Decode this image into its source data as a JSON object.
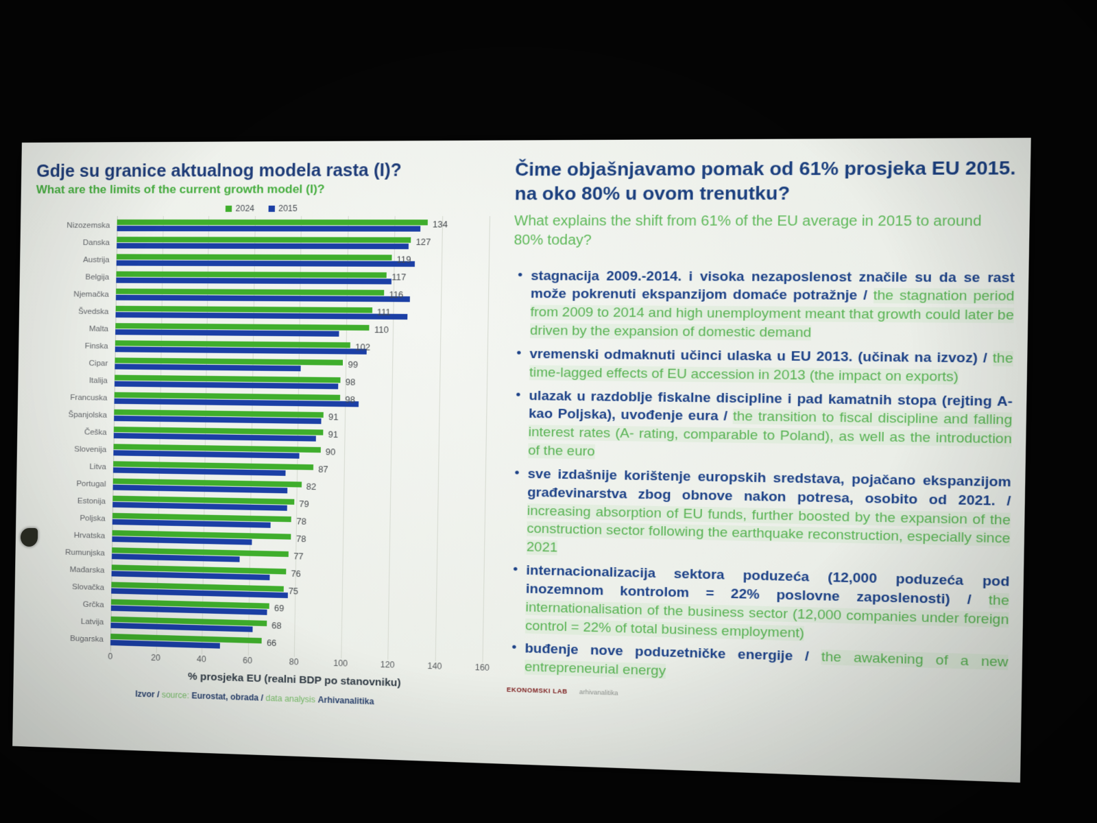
{
  "colors": {
    "bar_green_2024": "#3fae2c",
    "bar_blue_2015": "#1b3fa5",
    "navy_text": "#1c4187",
    "green_text": "#58b253",
    "slide_background": "#ecefe9",
    "photo_background": "#050505",
    "brand_red": "#7e1f1f"
  },
  "slide": {
    "left_panel": {
      "title": "Gdje su granice aktualnog modela rasta (I)?",
      "subtitle": "What are the limits of the current growth model (I)?",
      "source_parts": [
        {
          "text": "Izvor / ",
          "style": "navy"
        },
        {
          "text": "source: ",
          "style": "green"
        },
        {
          "text": "Eurostat, obrada / ",
          "style": "navy"
        },
        {
          "text": "data analysis ",
          "style": "green"
        },
        {
          "text": "Arhivanalitika",
          "style": "navy"
        }
      ]
    },
    "right_panel": {
      "title": "Čime objašnjavamo pomak od 61% prosjeka EU 2015. na oko 80% u ovom trenutku?",
      "subtitle": "What explains the shift from 61% of the EU average in 2015 to around 80% today?",
      "bullets": [
        {
          "hr": "stagnacija 2009.-2014. i visoka nezaposlenost značile su da se rast može pokrenuti ekspanzijom domaće potražnje /",
          "en": "the stagnation period from 2009 to 2014 and high unemployment meant that growth could later be driven by the expansion of domestic demand"
        },
        {
          "hr": "vremenski odmaknuti učinci ulaska u EU 2013. (učinak na izvoz) /",
          "en": "the time-lagged effects of EU accession in 2013 (the impact on exports)"
        },
        {
          "hr": "ulazak u razdoblje fiskalne discipline i pad kamatnih stopa (rejting A- kao Poljska), uvođenje eura /",
          "en": "the transition to fiscal discipline and falling interest rates (A- rating, comparable to Poland), as well as the introduction of the euro"
        },
        {
          "hr": "sve izdašnije korištenje europskih sredstava, pojačano ekspanzijom građevinarstva zbog obnove nakon potresa, osobito od 2021. /",
          "en": "increasing absorption of EU funds, further boosted by the expansion of the construction sector following the earthquake reconstruction, especially since 2021"
        },
        {
          "hr": "internacionalizacija sektora poduzeća (12,000 poduzeća pod inozemnom kontrolom = 22% poslovne zaposlenosti) /",
          "en": "the internationalisation of the business sector (12,000 companies under foreign control = 22% of total business employment)"
        },
        {
          "hr": "buđenje nove poduzetničke energije /",
          "en": "the awakening of a new entrepreneurial energy"
        }
      ],
      "footer": {
        "brand": "EKONOMSKI LAB",
        "partner": "arhivanalitika"
      }
    }
  },
  "chart_data": {
    "type": "bar",
    "orientation": "horizontal",
    "title": "",
    "xlabel": "% prosjeka EU (realni BDP po stanovniku)",
    "xlim": [
      0,
      160
    ],
    "xticks": [
      0,
      20,
      40,
      60,
      80,
      100,
      120,
      140,
      160
    ],
    "grid": true,
    "legend_position": "top",
    "categories": [
      "Nizozemska",
      "Danska",
      "Austrija",
      "Belgija",
      "Njemačka",
      "Švedska",
      "Malta",
      "Finska",
      "Cipar",
      "Italija",
      "Francuska",
      "Španjolska",
      "Češka",
      "Slovenija",
      "Litva",
      "Portugal",
      "Estonija",
      "Poljska",
      "Hrvatska",
      "Rumunjska",
      "Mađarska",
      "Slovačka",
      "Grčka",
      "Latvija",
      "Bugarska"
    ],
    "series": [
      {
        "name": "2024",
        "color": "#3fae2c",
        "labeled": true,
        "values": [
          134,
          127,
          119,
          117,
          116,
          111,
          110,
          102,
          99,
          98,
          98,
          91,
          91,
          90,
          87,
          82,
          79,
          78,
          78,
          77,
          76,
          75,
          69,
          68,
          66
        ]
      },
      {
        "name": "2015",
        "color": "#1b3fa5",
        "labeled": false,
        "estimated_from_pixels": true,
        "values": [
          131,
          126,
          129,
          119,
          127,
          126,
          97,
          109,
          81,
          97,
          106,
          90,
          88,
          81,
          75,
          76,
          76,
          69,
          61,
          56,
          69,
          77,
          68,
          62,
          48
        ]
      }
    ]
  }
}
